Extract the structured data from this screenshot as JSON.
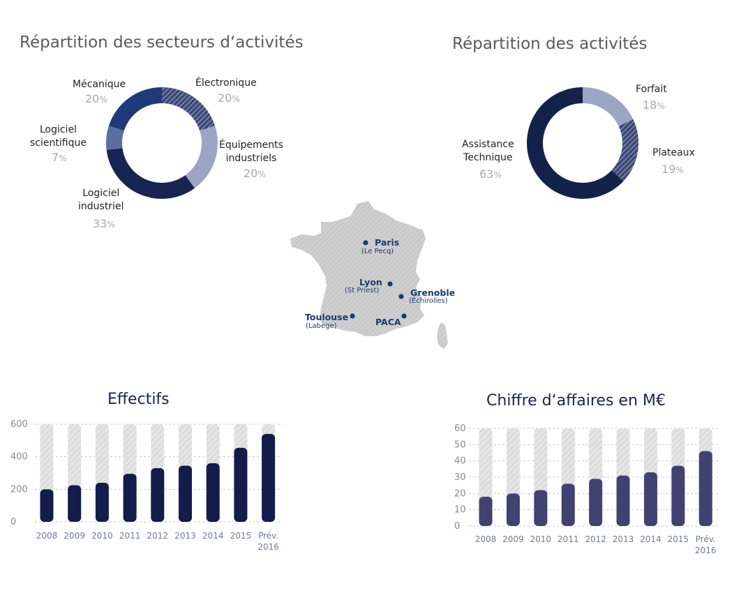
{
  "sectors": {
    "title": "Répartition des secteurs d‘activités",
    "items": [
      {
        "label_lines": [
          "Électronique"
        ],
        "pct": "20",
        "unit": "%"
      },
      {
        "label_lines": [
          "Équipements",
          "industriels"
        ],
        "pct": "20",
        "unit": "%"
      },
      {
        "label_lines": [
          "Logiciel",
          "industriel"
        ],
        "pct": "33",
        "unit": "%"
      },
      {
        "label_lines": [
          "Logiciel",
          "scientifique"
        ],
        "pct": "7",
        "unit": "%"
      },
      {
        "label_lines": [
          "Mécanique"
        ],
        "pct": "20",
        "unit": "%"
      }
    ]
  },
  "activities": {
    "title": "Répartition des activités",
    "items": [
      {
        "label_lines": [
          "Forfait"
        ],
        "pct": "18",
        "unit": "%"
      },
      {
        "label_lines": [
          "Plateaux"
        ],
        "pct": "19",
        "unit": "%"
      },
      {
        "label_lines": [
          "Assistance",
          "Technique"
        ],
        "pct": "63",
        "unit": "%"
      }
    ]
  },
  "map": {
    "cities": [
      {
        "name": "Paris",
        "sub": "(Le Pecq)"
      },
      {
        "name": "Lyon",
        "sub": "(St Priest)"
      },
      {
        "name": "Grenoble",
        "sub": "(Échirolles)"
      },
      {
        "name": "Toulouse",
        "sub": "(Labège)"
      },
      {
        "name": "PACA",
        "sub": ""
      }
    ]
  },
  "chart_data": [
    {
      "type": "pie",
      "title": "Répartition des secteurs d‘activités",
      "categories": [
        "Électronique",
        "Équipements industriels",
        "Logiciel industriel",
        "Logiciel scientifique",
        "Mécanique"
      ],
      "values": [
        20,
        20,
        33,
        7,
        20
      ],
      "colors": [
        "#3d4a78",
        "#9aa6c4",
        "#182452",
        "#5a6fa0",
        "#1f3a7a"
      ],
      "hatched": [
        true,
        false,
        false,
        false,
        false
      ]
    },
    {
      "type": "pie",
      "title": "Répartition des activités",
      "categories": [
        "Forfait",
        "Plateaux",
        "Assistance Technique"
      ],
      "values": [
        18,
        19,
        63
      ],
      "colors": [
        "#9aa6c4",
        "#3d4a78",
        "#13224a"
      ],
      "hatched": [
        false,
        true,
        false
      ]
    },
    {
      "type": "bar",
      "title": "Effectifs",
      "categories": [
        "2008",
        "2009",
        "2010",
        "2011",
        "2012",
        "2013",
        "2014",
        "2015",
        "Prév.\n2016"
      ],
      "values": [
        200,
        225,
        240,
        295,
        330,
        345,
        360,
        455,
        540
      ],
      "ylim": [
        0,
        600
      ],
      "yticks": [
        0,
        200,
        400,
        600
      ],
      "bar_color": "#131c4a",
      "grid": true
    },
    {
      "type": "bar",
      "title": "Chiffre d‘affaires en M€",
      "categories": [
        "2008",
        "2009",
        "2010",
        "2011",
        "2012",
        "2013",
        "2014",
        "2015",
        "Prév.\n2016"
      ],
      "values": [
        18,
        20,
        22,
        26,
        29,
        31,
        33,
        37,
        46
      ],
      "ylim": [
        0,
        60
      ],
      "yticks": [
        0,
        10,
        20,
        30,
        40,
        50,
        60
      ],
      "bar_color": "#414272",
      "grid": true
    }
  ]
}
